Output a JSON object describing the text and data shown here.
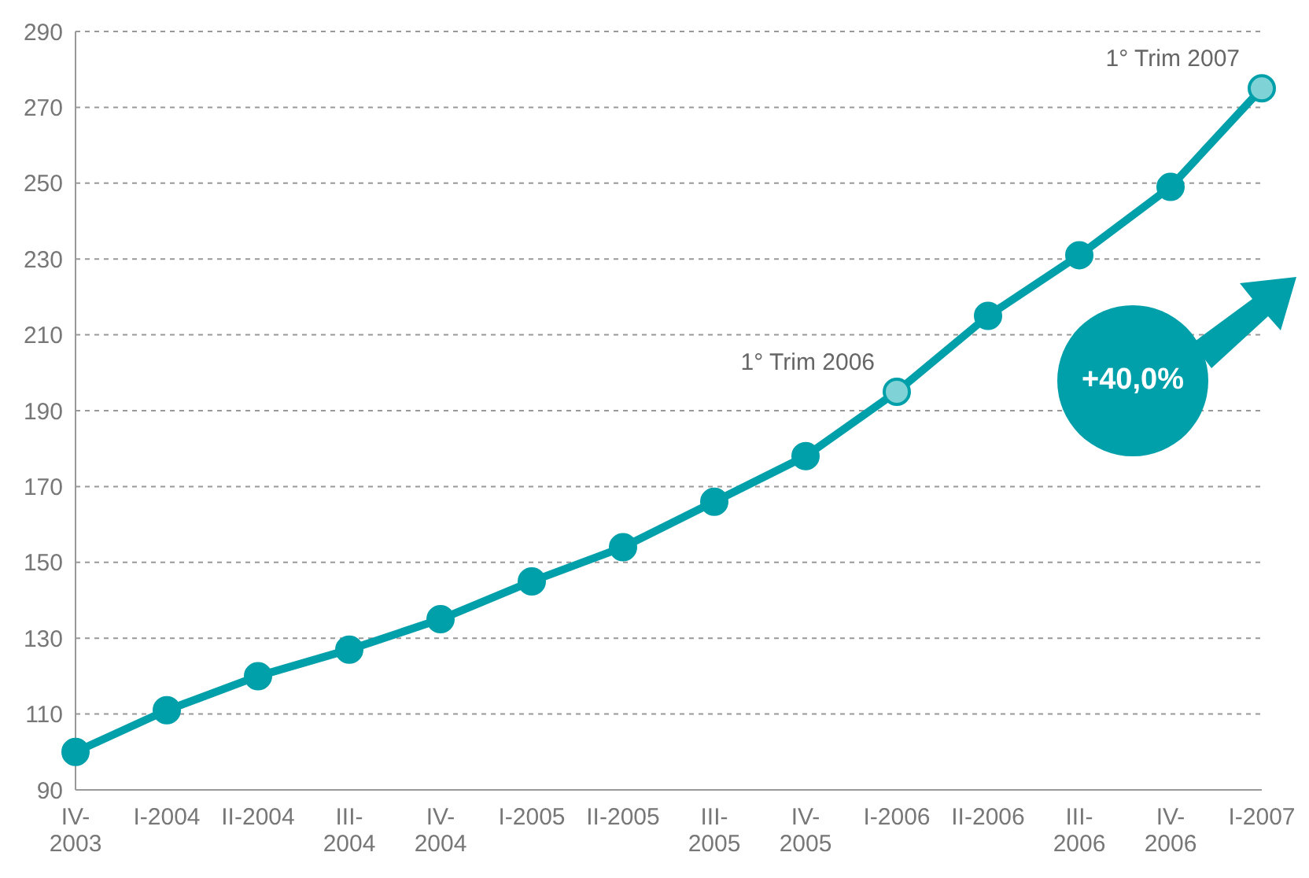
{
  "chart_data": {
    "type": "line",
    "categories": [
      "IV-\n2003",
      "I-2004",
      "II-2004",
      "III-\n2004",
      "IV-\n2004",
      "I-2005",
      "II-2005",
      "III-\n2005",
      "IV-\n2005",
      "I-2006",
      "II-2006",
      "III-\n2006",
      "IV-\n2006",
      "I-2007"
    ],
    "series": [
      {
        "color": "#00a0aa",
        "values": [
          100,
          111,
          120,
          127,
          135,
          145,
          154,
          166,
          178,
          195,
          215,
          231,
          249,
          275
        ]
      }
    ],
    "ylim": [
      90,
      290
    ],
    "yticks": [
      90,
      110,
      130,
      150,
      170,
      190,
      210,
      230,
      250,
      270,
      290
    ],
    "grid": "y",
    "marker": "circle",
    "line_style": "solid",
    "annotations": [
      {
        "text": "1° Trim  2006",
        "x": "I-2006",
        "y": 195
      },
      {
        "text": "1° Trim  2007",
        "x": "I-2007",
        "y": 275
      },
      "+40,0%"
    ]
  }
}
